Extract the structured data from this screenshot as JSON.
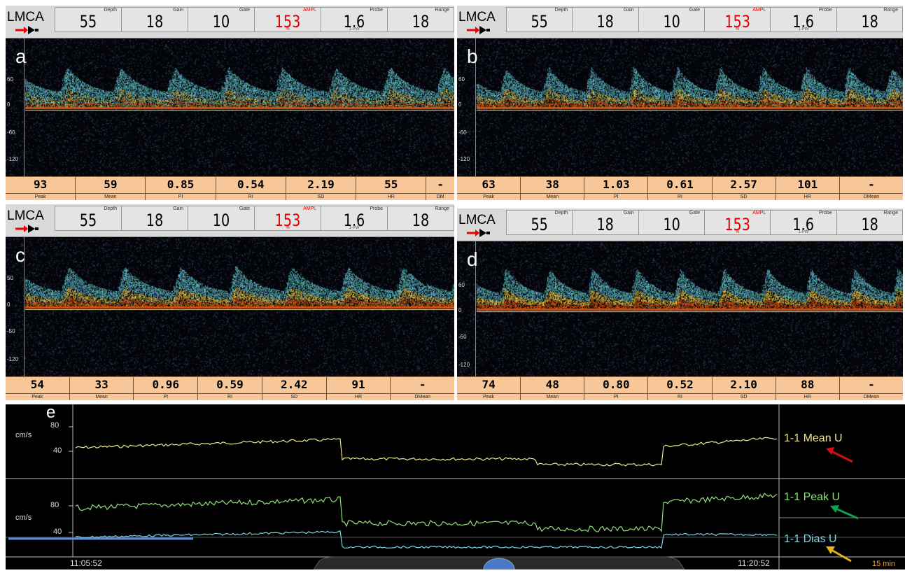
{
  "header_labels": {
    "vessel": "LMCA",
    "params": [
      "Depth",
      "Gain",
      "Gate",
      "AMPL",
      "Probe",
      "Range"
    ]
  },
  "panels": [
    {
      "letter": "a",
      "values": [
        "55",
        "18",
        "10",
        "153",
        "1.6",
        "18"
      ],
      "units": [
        "",
        "",
        "",
        "%",
        "1-PW",
        ""
      ],
      "yticks": [
        "60",
        "0",
        "-60",
        "-120"
      ],
      "stats": [
        {
          "v": "93",
          "l": "Peak"
        },
        {
          "v": "59",
          "l": "Mean"
        },
        {
          "v": "0.85",
          "l": "PI"
        },
        {
          "v": "0.54",
          "l": "RI"
        },
        {
          "v": "2.19",
          "l": "SD"
        },
        {
          "v": "55",
          "l": "HR"
        },
        {
          "v": "-",
          "l": "DM"
        }
      ]
    },
    {
      "letter": "b",
      "values": [
        "55",
        "18",
        "10",
        "153",
        "1.6",
        "18"
      ],
      "units": [
        "",
        "",
        "",
        "%",
        "1-PW",
        ""
      ],
      "yticks": [
        "60",
        "0",
        "-60",
        "-120"
      ],
      "stats": [
        {
          "v": "63",
          "l": "Peak"
        },
        {
          "v": "38",
          "l": "Mean"
        },
        {
          "v": "1.03",
          "l": "PI"
        },
        {
          "v": "0.61",
          "l": "RI"
        },
        {
          "v": "2.57",
          "l": "SD"
        },
        {
          "v": "101",
          "l": "HR"
        },
        {
          "v": "-",
          "l": "DMean"
        }
      ]
    },
    {
      "letter": "c",
      "values": [
        "55",
        "18",
        "10",
        "153",
        "1.6",
        "18"
      ],
      "units": [
        "",
        "",
        "",
        "%",
        "1-PW",
        ""
      ],
      "yticks": [
        "50",
        "0",
        "-50",
        "-120"
      ],
      "stats": [
        {
          "v": "54",
          "l": "Peak"
        },
        {
          "v": "33",
          "l": "Mean"
        },
        {
          "v": "0.96",
          "l": "PI"
        },
        {
          "v": "0.59",
          "l": "RI"
        },
        {
          "v": "2.42",
          "l": "SD"
        },
        {
          "v": "91",
          "l": "HR"
        },
        {
          "v": "-",
          "l": "DMean"
        }
      ]
    },
    {
      "letter": "d",
      "values": [
        "55",
        "18",
        "10",
        "153",
        "1.6",
        "18"
      ],
      "units": [
        "",
        "",
        "",
        "%",
        "1-PW",
        ""
      ],
      "yticks": [
        "60",
        "0",
        "-60",
        "-120"
      ],
      "stats": [
        {
          "v": "74",
          "l": "Peak"
        },
        {
          "v": "48",
          "l": "Mean"
        },
        {
          "v": "0.80",
          "l": "PI"
        },
        {
          "v": "0.52",
          "l": "RI"
        },
        {
          "v": "2.10",
          "l": "SD"
        },
        {
          "v": "88",
          "l": "HR"
        },
        {
          "v": "-",
          "l": "DMean"
        }
      ]
    }
  ],
  "trend": {
    "letter": "e",
    "unit": "cm/s",
    "upper_ticks": [
      "80",
      "40"
    ],
    "lower_ticks": [
      "80",
      "40"
    ],
    "legend": {
      "mean": "1-1 Mean U",
      "peak": "1-1 Peak U",
      "dias": "1-1 Dias U"
    },
    "time_start": "11:05:52",
    "time_end": "11:20:52",
    "span": "15 min",
    "colors": {
      "mean": "#f0e68c",
      "peak": "#8fe07a",
      "dias": "#7fd8e0",
      "baseline": "#5b8de0"
    }
  }
}
